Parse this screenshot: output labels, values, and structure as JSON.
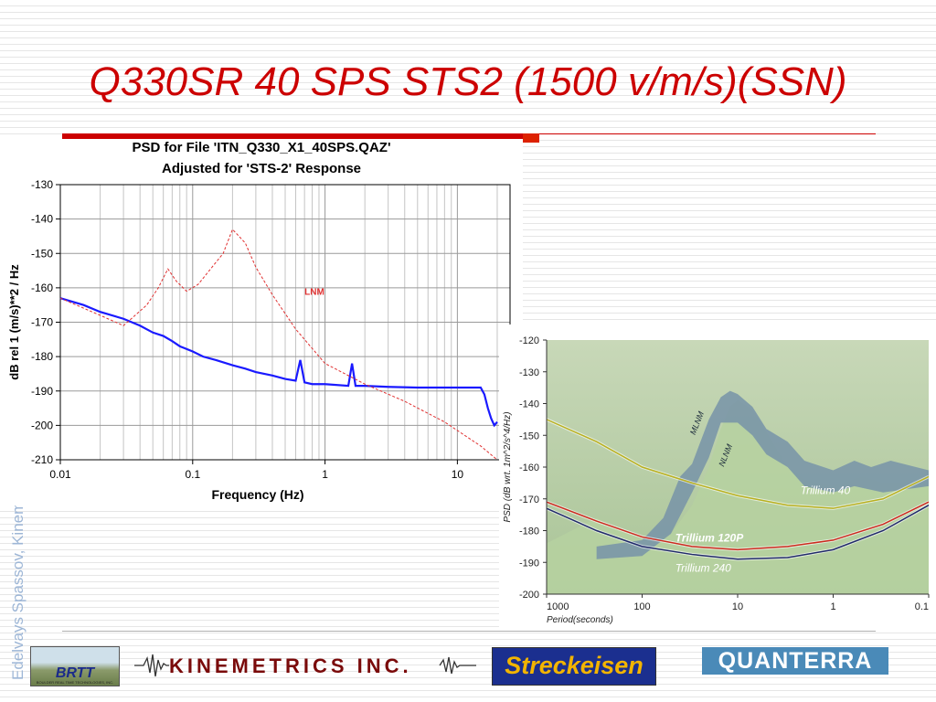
{
  "slide": {
    "title": "Q330SR 40 SPS STS2 (1500 v/m/s)(SSN)",
    "side_credit": "Edelvays Spassov, Kinemetrics Inc.",
    "accent_color": "#cc0000"
  },
  "logos": {
    "brtt": "BRTT",
    "brtt_sub": "BOULDER REAL TIME TECHNOLOGIES, INC.",
    "kinemetrics": "KINEMETRICS INC.",
    "streckeisen": "Streckeisen",
    "quanterra": "QUANTERRA"
  },
  "chart_data": [
    {
      "type": "line",
      "title": "PSD for File 'ITN_Q330_X1_40SPS.QAZ'",
      "subtitle": "Adjusted for 'STS-2' Response",
      "xlabel": "Frequency (Hz)",
      "ylabel": "dB rel 1 (m/s)**2 / Hz",
      "x_scale": "log",
      "xlim": [
        0.01,
        25
      ],
      "ylim": [
        -210,
        -130
      ],
      "x_ticks": [
        "0.01",
        "0.1",
        "1",
        "10"
      ],
      "y_ticks": [
        "-130",
        "-140",
        "-150",
        "-160",
        "-170",
        "-180",
        "-190",
        "-200",
        "-210"
      ],
      "grid": true,
      "annotations": [
        {
          "text": "LNM",
          "x": 0.7,
          "y": -161
        }
      ],
      "series": [
        {
          "name": "",
          "color": "#1a1aff",
          "style": "solid",
          "x": [
            0.01,
            0.015,
            0.02,
            0.03,
            0.04,
            0.05,
            0.06,
            0.07,
            0.08,
            0.1,
            0.12,
            0.15,
            0.2,
            0.25,
            0.3,
            0.4,
            0.5,
            0.6,
            0.65,
            0.7,
            0.8,
            1.0,
            1.5,
            1.6,
            1.7,
            2,
            3,
            5,
            8,
            10,
            12,
            15,
            16,
            17,
            18,
            19,
            20
          ],
          "y": [
            -163,
            -165,
            -167,
            -169,
            -171,
            -173,
            -174,
            -175.5,
            -177,
            -178.5,
            -180,
            -181,
            -182.5,
            -183.5,
            -184.5,
            -185.5,
            -186.5,
            -187,
            -181,
            -187.5,
            -188,
            -188,
            -188.5,
            -182,
            -188.5,
            -188.5,
            -188.8,
            -189,
            -189,
            -189,
            -189,
            -189,
            -191,
            -195,
            -198,
            -200,
            -199
          ]
        },
        {
          "name": "LNM",
          "color": "#e03030",
          "style": "dashed",
          "x": [
            0.01,
            0.02,
            0.03,
            0.045,
            0.055,
            0.065,
            0.075,
            0.09,
            0.11,
            0.14,
            0.17,
            0.2,
            0.25,
            0.3,
            0.4,
            0.6,
            1.0,
            2,
            4,
            8,
            15,
            20
          ],
          "y": [
            -163,
            -168,
            -171,
            -165,
            -160,
            -154.5,
            -158,
            -161,
            -159,
            -154,
            -150,
            -143,
            -147,
            -154,
            -162,
            -172,
            -182,
            -188,
            -193,
            -199,
            -206,
            -210
          ]
        }
      ]
    },
    {
      "type": "line",
      "title": "",
      "xlabel": "Period(seconds)",
      "ylabel": "PSD (dB wrt. 1m^2/s^4/Hz)",
      "x_scale": "log",
      "x_reversed": true,
      "xlim": [
        1000,
        0.1
      ],
      "ylim": [
        -200,
        -120
      ],
      "x_ticks": [
        "1000",
        "100",
        "10",
        "1",
        "0.1"
      ],
      "y_ticks": [
        "-120",
        "-130",
        "-140",
        "-150",
        "-160",
        "-170",
        "-180",
        "-190",
        "-200"
      ],
      "labels": [
        "MLNM",
        "NLNM"
      ],
      "series": [
        {
          "name": "Trillium 40",
          "color": "#b8b020",
          "x": [
            1000,
            300,
            100,
            30,
            10,
            3,
            1,
            0.3,
            0.1
          ],
          "y": [
            -145,
            -152,
            -160,
            -165,
            -169,
            -172,
            -173,
            -170,
            -163
          ]
        },
        {
          "name": "Trillium 120P",
          "color": "#cc2a1e",
          "x": [
            1000,
            300,
            100,
            30,
            10,
            3,
            1,
            0.3,
            0.1
          ],
          "y": [
            -171,
            -177,
            -182,
            -185,
            -186,
            -185,
            -183,
            -178,
            -171
          ]
        },
        {
          "name": "Trillium 240",
          "color": "#202a6a",
          "x": [
            1000,
            300,
            100,
            30,
            10,
            3,
            1,
            0.3,
            0.1
          ],
          "y": [
            -173,
            -180,
            -185,
            -187.5,
            -189,
            -188.5,
            -186,
            -180,
            -172
          ]
        }
      ]
    }
  ]
}
